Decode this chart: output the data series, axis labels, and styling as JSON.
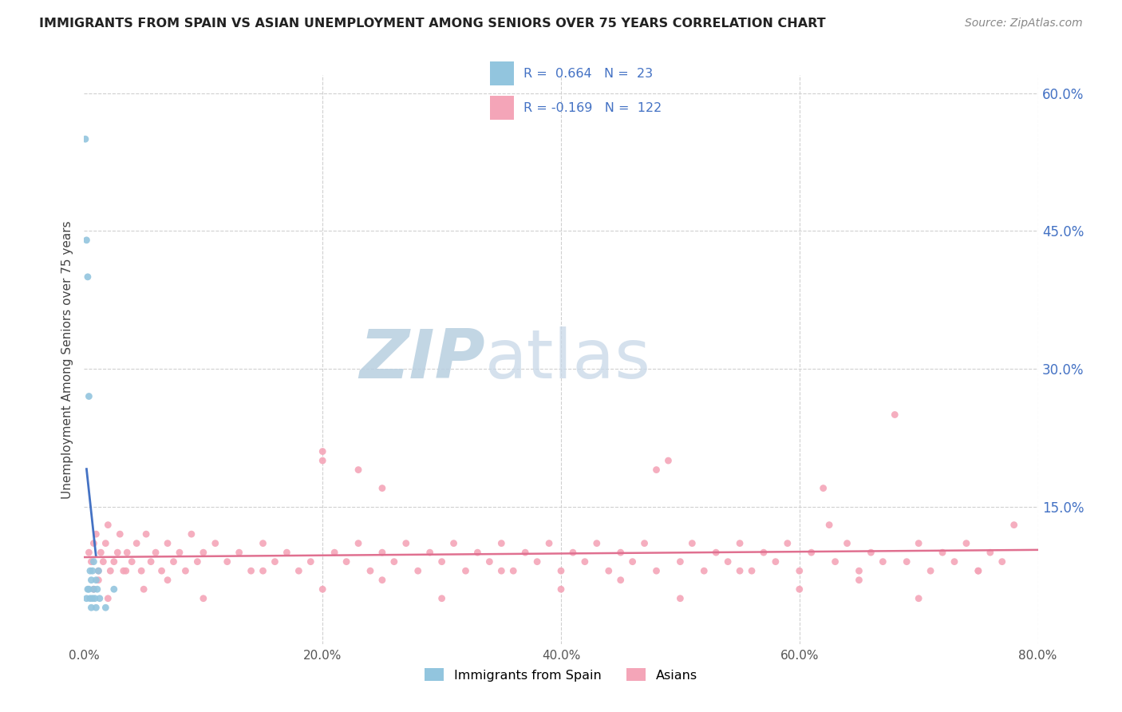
{
  "title": "IMMIGRANTS FROM SPAIN VS ASIAN UNEMPLOYMENT AMONG SENIORS OVER 75 YEARS CORRELATION CHART",
  "source": "Source: ZipAtlas.com",
  "ylabel": "Unemployment Among Seniors over 75 years",
  "xlim": [
    0.0,
    0.8
  ],
  "ylim": [
    0.0,
    0.62
  ],
  "legend_R_blue": "0.664",
  "legend_N_blue": "23",
  "legend_R_pink": "-0.169",
  "legend_N_pink": "122",
  "blue_color": "#92c5de",
  "pink_color": "#f4a5b8",
  "trendline_blue_color": "#4472c4",
  "trendline_pink_color": "#e07090",
  "watermark_color_zip": "#b8cfe0",
  "watermark_color_atlas": "#c8d8e8",
  "background_color": "#ffffff",
  "grid_color": "#d0d0d0",
  "right_tick_color": "#4472c4",
  "title_color": "#222222",
  "source_color": "#888888",
  "ylabel_color": "#444444",
  "xtick_color": "#555555",
  "ytick_positions": [
    0.15,
    0.3,
    0.45,
    0.6
  ],
  "ytick_labels": [
    "15.0%",
    "30.0%",
    "45.0%",
    "60.0%"
  ],
  "xtick_positions": [
    0.0,
    0.2,
    0.4,
    0.6,
    0.8
  ],
  "xtick_labels": [
    "0.0%",
    "20.0%",
    "40.0%",
    "60.0%",
    "80.0%"
  ],
  "blue_x": [
    0.001,
    0.002,
    0.002,
    0.003,
    0.003,
    0.004,
    0.004,
    0.005,
    0.005,
    0.006,
    0.006,
    0.007,
    0.007,
    0.008,
    0.008,
    0.009,
    0.01,
    0.01,
    0.011,
    0.012,
    0.013,
    0.018,
    0.025
  ],
  "blue_y": [
    0.55,
    0.44,
    0.05,
    0.4,
    0.06,
    0.27,
    0.06,
    0.08,
    0.05,
    0.07,
    0.04,
    0.08,
    0.05,
    0.09,
    0.06,
    0.05,
    0.07,
    0.04,
    0.06,
    0.08,
    0.05,
    0.04,
    0.06
  ],
  "pink_x": [
    0.004,
    0.006,
    0.008,
    0.01,
    0.012,
    0.014,
    0.016,
    0.018,
    0.02,
    0.022,
    0.025,
    0.028,
    0.03,
    0.033,
    0.036,
    0.04,
    0.044,
    0.048,
    0.052,
    0.056,
    0.06,
    0.065,
    0.07,
    0.075,
    0.08,
    0.085,
    0.09,
    0.095,
    0.1,
    0.11,
    0.12,
    0.13,
    0.14,
    0.15,
    0.16,
    0.17,
    0.18,
    0.19,
    0.2,
    0.21,
    0.22,
    0.23,
    0.24,
    0.25,
    0.26,
    0.27,
    0.28,
    0.29,
    0.3,
    0.31,
    0.32,
    0.33,
    0.34,
    0.35,
    0.36,
    0.37,
    0.38,
    0.39,
    0.4,
    0.41,
    0.42,
    0.43,
    0.44,
    0.45,
    0.46,
    0.47,
    0.48,
    0.49,
    0.5,
    0.51,
    0.52,
    0.53,
    0.54,
    0.55,
    0.56,
    0.57,
    0.58,
    0.59,
    0.6,
    0.61,
    0.62,
    0.63,
    0.64,
    0.65,
    0.66,
    0.67,
    0.68,
    0.69,
    0.7,
    0.71,
    0.72,
    0.73,
    0.74,
    0.75,
    0.76,
    0.77,
    0.78,
    0.008,
    0.012,
    0.02,
    0.035,
    0.05,
    0.07,
    0.1,
    0.15,
    0.2,
    0.25,
    0.3,
    0.35,
    0.4,
    0.45,
    0.5,
    0.55,
    0.6,
    0.65,
    0.7,
    0.75,
    0.2,
    0.23,
    0.25,
    0.48,
    0.625
  ],
  "pink_y": [
    0.1,
    0.09,
    0.11,
    0.12,
    0.08,
    0.1,
    0.09,
    0.11,
    0.13,
    0.08,
    0.09,
    0.1,
    0.12,
    0.08,
    0.1,
    0.09,
    0.11,
    0.08,
    0.12,
    0.09,
    0.1,
    0.08,
    0.11,
    0.09,
    0.1,
    0.08,
    0.12,
    0.09,
    0.1,
    0.11,
    0.09,
    0.1,
    0.08,
    0.11,
    0.09,
    0.1,
    0.08,
    0.09,
    0.21,
    0.1,
    0.09,
    0.11,
    0.08,
    0.1,
    0.09,
    0.11,
    0.08,
    0.1,
    0.09,
    0.11,
    0.08,
    0.1,
    0.09,
    0.11,
    0.08,
    0.1,
    0.09,
    0.11,
    0.08,
    0.1,
    0.09,
    0.11,
    0.08,
    0.1,
    0.09,
    0.11,
    0.08,
    0.2,
    0.09,
    0.11,
    0.08,
    0.1,
    0.09,
    0.11,
    0.08,
    0.1,
    0.09,
    0.11,
    0.08,
    0.1,
    0.17,
    0.09,
    0.11,
    0.08,
    0.1,
    0.09,
    0.25,
    0.09,
    0.11,
    0.08,
    0.1,
    0.09,
    0.11,
    0.08,
    0.1,
    0.09,
    0.13,
    0.06,
    0.07,
    0.05,
    0.08,
    0.06,
    0.07,
    0.05,
    0.08,
    0.06,
    0.07,
    0.05,
    0.08,
    0.06,
    0.07,
    0.05,
    0.08,
    0.06,
    0.07,
    0.05,
    0.08,
    0.2,
    0.19,
    0.17,
    0.19,
    0.13
  ]
}
